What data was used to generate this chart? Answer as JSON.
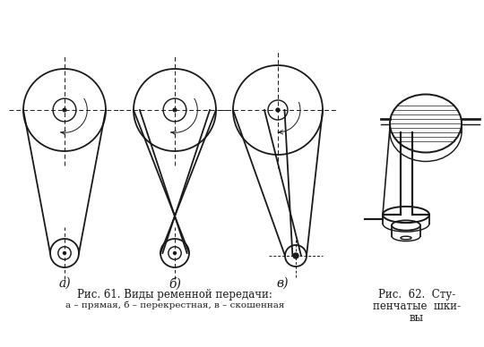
{
  "bg_color": "#ffffff",
  "line_color": "#1a1a1a",
  "caption1": "Рис. 61. Виды ременной передачи:",
  "caption1b": "а – прямая, б – перекрестная, в – скошенная",
  "caption2a": "Рис.  62.  Сту-",
  "caption2b": "пенчатые  шки-",
  "caption2c": "вы",
  "label_a": "а)",
  "label_b": "б)",
  "label_v": "в)",
  "fig_width": 5.4,
  "fig_height": 3.88,
  "dpi": 100
}
